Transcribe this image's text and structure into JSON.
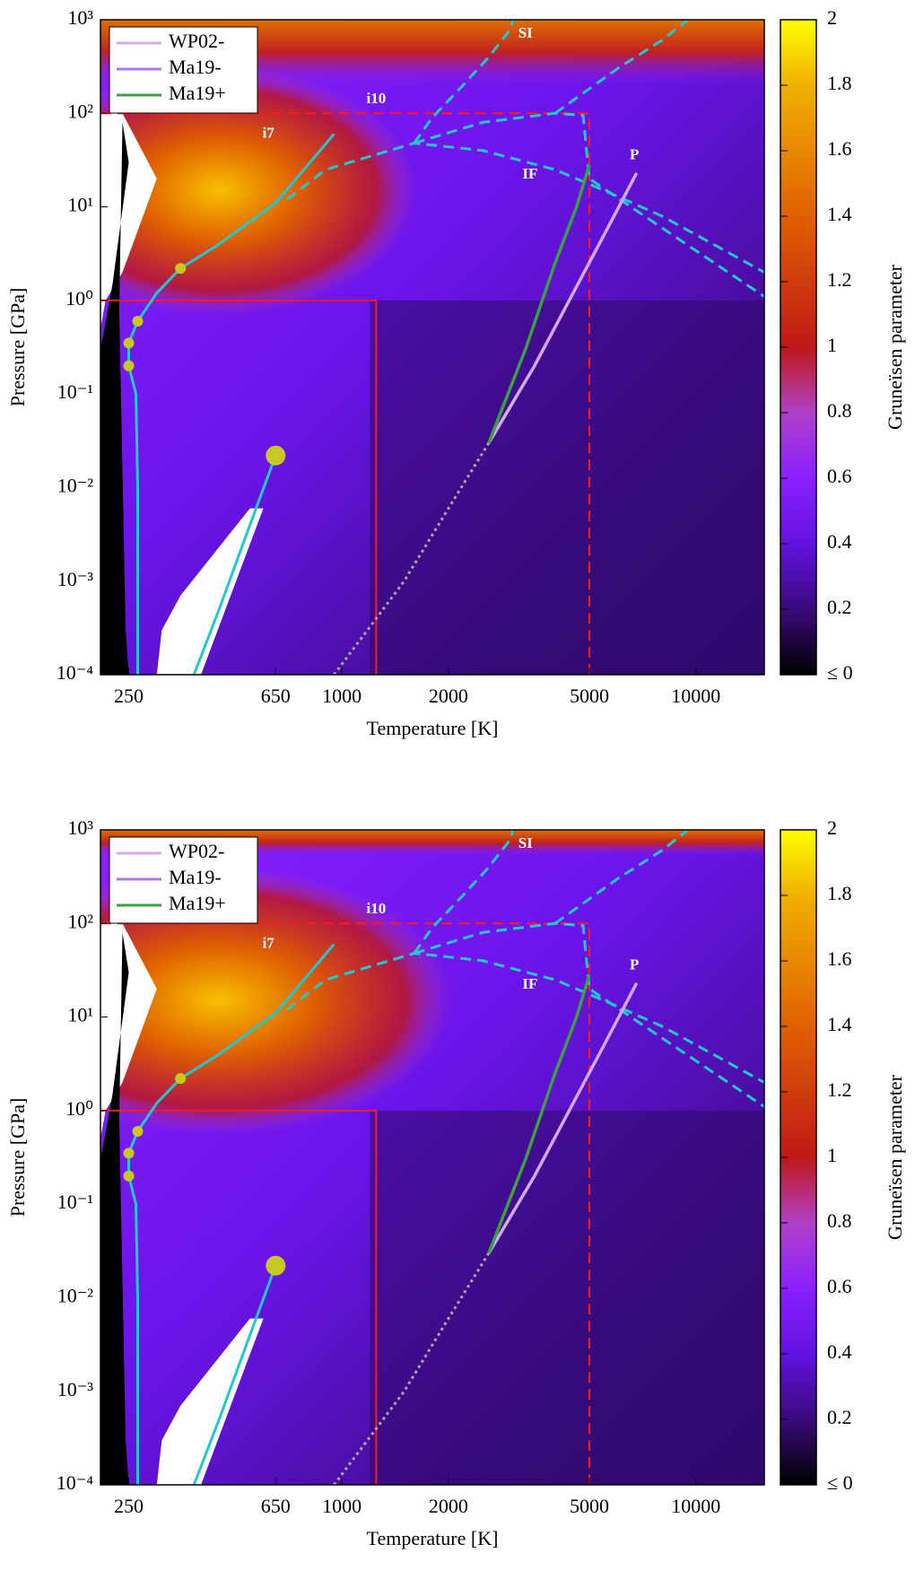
{
  "chart_data": [
    {
      "type": "line",
      "xlabel": "Temperature [K]",
      "ylabel": "Pressure [GPa]",
      "colorbar_label": "Gruneïsen parameter",
      "xscale": "log",
      "yscale": "log",
      "xlim": [
        208,
        15600
      ],
      "ylim": [
        0.0001,
        1000
      ],
      "xticks": [
        250,
        650,
        1000,
        2000,
        5000,
        10000
      ],
      "yticks": [
        {
          "value": 0.0001,
          "label": "10⁻⁴"
        },
        {
          "value": 0.001,
          "label": "10⁻³"
        },
        {
          "value": 0.01,
          "label": "10⁻²"
        },
        {
          "value": 0.1,
          "label": "10⁻¹"
        },
        {
          "value": 1,
          "label": "10⁰"
        },
        {
          "value": 10,
          "label": "10¹"
        },
        {
          "value": 100,
          "label": "10²"
        },
        {
          "value": 1000,
          "label": "10³"
        }
      ],
      "clim": [
        0,
        2
      ],
      "cticks": [
        {
          "value": 0,
          "label": "≤ 0"
        },
        0.2,
        0.4,
        0.6,
        0.8,
        1,
        1.2,
        1.4,
        1.6,
        1.8,
        2
      ],
      "legend": "upper left",
      "series": [
        {
          "name": "WP02-",
          "color": "#d4a8f4",
          "x": [
            2600,
            3500,
            4500,
            5500,
            6800
          ],
          "y": [
            0.03,
            0.2,
            1.2,
            5,
            23
          ]
        },
        {
          "name": "Ma19-",
          "color": "#b078f0",
          "x": [],
          "y": []
        },
        {
          "name": "Ma19+",
          "color": "#3aa040",
          "x": [
            2600,
            3300,
            4000,
            4600,
            5000
          ],
          "y": [
            0.03,
            0.3,
            2.5,
            10,
            28
          ]
        }
      ],
      "boundaries": [
        {
          "color": "#22c8d0",
          "style": "solid",
          "x": [
            265,
            265,
            262,
            250,
            250,
            265,
            300,
            350,
            450,
            650,
            950
          ],
          "y": [
            0.0001,
            0.01,
            0.1,
            0.2,
            0.35,
            0.6,
            1.2,
            2.2,
            4,
            11,
            60
          ]
        },
        {
          "color": "#22c8d0",
          "style": "solid",
          "x": [
            382,
            450,
            550,
            650
          ],
          "y": [
            0.0001,
            0.0005,
            0.004,
            0.022
          ]
        },
        {
          "color": "#22c8d0",
          "style": "dashed",
          "x": [
            700,
            900,
            1600,
            2500,
            4000,
            5500,
            8000,
            15600
          ],
          "y": [
            12,
            25,
            48,
            40,
            25,
            15,
            8,
            2
          ]
        },
        {
          "color": "#22c8d0",
          "style": "dashed",
          "x": [
            1600,
            1800,
            2200,
            2600,
            3000,
            3040
          ],
          "y": [
            48,
            90,
            200,
            400,
            800,
            1000
          ]
        },
        {
          "color": "#22c8d0",
          "style": "dashed",
          "x": [
            1600,
            2500,
            4000,
            4800,
            5000,
            8000,
            15600
          ],
          "y": [
            48,
            80,
            100,
            95,
            20,
            6,
            1.1
          ]
        },
        {
          "color": "#22c8d0",
          "style": "dashed",
          "x": [
            4000,
            6000,
            8000,
            9500
          ],
          "y": [
            100,
            300,
            600,
            1000
          ]
        },
        {
          "color": "#aaaaaa",
          "style": "dotted",
          "x": [
            950,
            1500,
            2000,
            2600
          ],
          "y": [
            0.0001,
            0.001,
            0.006,
            0.03
          ]
        }
      ],
      "points": {
        "x": [
          250,
          250,
          265,
          350,
          650
        ],
        "y": [
          0.2,
          0.35,
          0.6,
          2.2,
          0.022
        ]
      },
      "regions": [
        {
          "x": 1250,
          "y": 1,
          "style": "solid"
        },
        {
          "x": 5000,
          "y": 100,
          "style": "dashed"
        }
      ],
      "annotations": [
        "SI",
        "i10",
        "i7",
        "IF",
        "P"
      ]
    },
    {
      "type": "line",
      "xlabel": "Temperature [K]",
      "ylabel": "Pressure [GPa]",
      "colorbar_label": "Gruneïsen parameter",
      "xscale": "log",
      "yscale": "log",
      "xlim": [
        208,
        15600
      ],
      "ylim": [
        0.0001,
        1000
      ],
      "xticks": [
        250,
        650,
        1000,
        2000,
        5000,
        10000
      ],
      "yticks": [
        {
          "value": 0.0001,
          "label": "10⁻⁴"
        },
        {
          "value": 0.001,
          "label": "10⁻³"
        },
        {
          "value": 0.01,
          "label": "10⁻²"
        },
        {
          "value": 0.1,
          "label": "10⁻¹"
        },
        {
          "value": 1,
          "label": "10⁰"
        },
        {
          "value": 10,
          "label": "10¹"
        },
        {
          "value": 100,
          "label": "10²"
        },
        {
          "value": 1000,
          "label": "10³"
        }
      ],
      "clim": [
        0,
        2
      ],
      "cticks": [
        {
          "value": 0,
          "label": "≤ 0"
        },
        0.2,
        0.4,
        0.6,
        0.8,
        1,
        1.2,
        1.4,
        1.6,
        1.8,
        2
      ],
      "legend": "upper left",
      "series": [
        {
          "name": "WP02-",
          "color": "#d4a8f4",
          "x": [
            2600,
            3500,
            4500,
            5500,
            6800
          ],
          "y": [
            0.03,
            0.2,
            1.2,
            5,
            23
          ]
        },
        {
          "name": "Ma19-",
          "color": "#b078f0",
          "x": [],
          "y": []
        },
        {
          "name": "Ma19+",
          "color": "#3aa040",
          "x": [
            2600,
            3300,
            4000,
            4600,
            5000
          ],
          "y": [
            0.03,
            0.3,
            2.5,
            10,
            28
          ]
        }
      ],
      "boundaries": [
        {
          "color": "#22c8d0",
          "style": "solid",
          "x": [
            265,
            265,
            262,
            250,
            250,
            265,
            300,
            350,
            450,
            650,
            950
          ],
          "y": [
            0.0001,
            0.01,
            0.1,
            0.2,
            0.35,
            0.6,
            1.2,
            2.2,
            4,
            11,
            60
          ]
        },
        {
          "color": "#22c8d0",
          "style": "solid",
          "x": [
            382,
            450,
            550,
            650
          ],
          "y": [
            0.0001,
            0.0005,
            0.004,
            0.022
          ]
        },
        {
          "color": "#22c8d0",
          "style": "dashed",
          "x": [
            700,
            900,
            1600,
            2500,
            4000,
            5500,
            8000,
            15600
          ],
          "y": [
            12,
            25,
            48,
            40,
            25,
            15,
            8,
            2
          ]
        },
        {
          "color": "#22c8d0",
          "style": "dashed",
          "x": [
            1600,
            1800,
            2200,
            2600,
            3000,
            3040
          ],
          "y": [
            48,
            90,
            200,
            400,
            800,
            1000
          ]
        },
        {
          "color": "#22c8d0",
          "style": "dashed",
          "x": [
            1600,
            2500,
            4000,
            4800,
            5000,
            8000,
            15600
          ],
          "y": [
            48,
            80,
            100,
            95,
            20,
            6,
            1.1
          ]
        },
        {
          "color": "#22c8d0",
          "style": "dashed",
          "x": [
            4000,
            6000,
            8000,
            9500
          ],
          "y": [
            100,
            300,
            600,
            1000
          ]
        },
        {
          "color": "#aaaaaa",
          "style": "dotted",
          "x": [
            950,
            1500,
            2000,
            2600
          ],
          "y": [
            0.0001,
            0.001,
            0.006,
            0.03
          ]
        }
      ],
      "points": {
        "x": [
          250,
          250,
          265,
          350,
          650
        ],
        "y": [
          0.2,
          0.35,
          0.6,
          2.2,
          0.022
        ]
      },
      "regions": [
        {
          "x": 1250,
          "y": 1,
          "style": "solid"
        },
        {
          "x": 5000,
          "y": 100,
          "style": "dashed"
        }
      ],
      "annotations": [
        "SI",
        "i10",
        "i7",
        "IF",
        "P"
      ]
    }
  ]
}
